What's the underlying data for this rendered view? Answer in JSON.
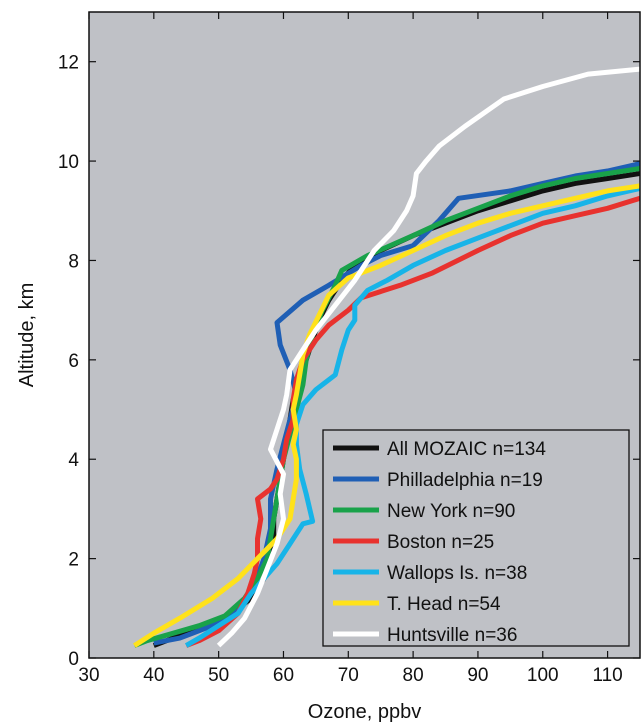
{
  "chart_data": {
    "type": "line",
    "title": "",
    "xlabel": "Ozone, ppbv",
    "ylabel": "Altitude, km",
    "xlim": [
      30,
      115
    ],
    "ylim": [
      0,
      13
    ],
    "xticks": [
      30,
      40,
      50,
      60,
      70,
      80,
      90,
      100,
      110
    ],
    "yticks": [
      0,
      2,
      4,
      6,
      8,
      10,
      12
    ],
    "grid": false,
    "background": "#bfc1c6",
    "legend_position": "bottom-right",
    "series": [
      {
        "name": "All MOZAIC n=134",
        "color": "#111111",
        "points": [
          [
            40,
            0.25
          ],
          [
            42,
            0.35
          ],
          [
            47,
            0.6
          ],
          [
            51,
            0.8
          ],
          [
            55,
            1.2
          ],
          [
            57,
            1.6
          ],
          [
            58,
            2.0
          ],
          [
            58.5,
            2.4
          ],
          [
            58.5,
            2.8
          ],
          [
            59,
            3.2
          ],
          [
            59.5,
            3.6
          ],
          [
            60,
            4.0
          ],
          [
            60.5,
            4.4
          ],
          [
            61,
            4.8
          ],
          [
            61.5,
            5.2
          ],
          [
            62.5,
            5.6
          ],
          [
            63.5,
            6.0
          ],
          [
            64.5,
            6.4
          ],
          [
            65.5,
            6.8
          ],
          [
            67,
            7.2
          ],
          [
            69,
            7.6
          ],
          [
            71,
            7.9
          ],
          [
            75,
            8.2
          ],
          [
            80,
            8.5
          ],
          [
            85,
            8.75
          ],
          [
            90,
            9.0
          ],
          [
            95,
            9.2
          ],
          [
            100,
            9.4
          ],
          [
            105,
            9.55
          ],
          [
            110,
            9.65
          ],
          [
            115,
            9.75
          ]
        ]
      },
      {
        "name": "Philladelphia n=19",
        "color": "#1f5fb5",
        "points": [
          [
            40,
            0.3
          ],
          [
            44,
            0.4
          ],
          [
            48,
            0.6
          ],
          [
            52,
            0.9
          ],
          [
            55,
            1.3
          ],
          [
            57,
            2.0
          ],
          [
            58,
            2.6
          ],
          [
            58,
            3.2
          ],
          [
            59,
            3.8
          ],
          [
            60,
            4.3
          ],
          [
            61,
            4.8
          ],
          [
            62,
            5.3
          ],
          [
            61,
            5.8
          ],
          [
            59.5,
            6.3
          ],
          [
            59,
            6.75
          ],
          [
            63,
            7.2
          ],
          [
            67,
            7.5
          ],
          [
            72,
            7.9
          ],
          [
            75,
            8.1
          ],
          [
            80,
            8.3
          ],
          [
            84,
            8.8
          ],
          [
            87,
            9.25
          ],
          [
            95,
            9.4
          ],
          [
            100,
            9.55
          ],
          [
            105,
            9.7
          ],
          [
            110,
            9.8
          ],
          [
            115,
            9.95
          ]
        ]
      },
      {
        "name": "New York n=90",
        "color": "#19a24a",
        "points": [
          [
            37,
            0.25
          ],
          [
            39,
            0.35
          ],
          [
            43,
            0.5
          ],
          [
            47,
            0.65
          ],
          [
            51,
            0.85
          ],
          [
            54,
            1.2
          ],
          [
            56,
            1.6
          ],
          [
            57.5,
            2.0
          ],
          [
            58,
            2.4
          ],
          [
            58.5,
            2.8
          ],
          [
            59,
            3.2
          ],
          [
            59.5,
            3.6
          ],
          [
            60,
            4.0
          ],
          [
            61,
            4.5
          ],
          [
            62,
            5.0
          ],
          [
            63,
            5.5
          ],
          [
            63.5,
            6.0
          ],
          [
            64.5,
            6.5
          ],
          [
            66,
            7.0
          ],
          [
            68,
            7.5
          ],
          [
            69,
            7.8
          ],
          [
            73,
            8.1
          ],
          [
            80,
            8.5
          ],
          [
            85,
            8.8
          ],
          [
            90,
            9.05
          ],
          [
            95,
            9.3
          ],
          [
            100,
            9.5
          ],
          [
            105,
            9.65
          ],
          [
            110,
            9.75
          ],
          [
            115,
            9.85
          ]
        ]
      },
      {
        "name": "Boston n=25",
        "color": "#e8322e",
        "points": [
          [
            45,
            0.25
          ],
          [
            47,
            0.35
          ],
          [
            50,
            0.55
          ],
          [
            53,
            0.9
          ],
          [
            54.5,
            1.3
          ],
          [
            55.5,
            1.7
          ],
          [
            56,
            2.0
          ],
          [
            56,
            2.4
          ],
          [
            56.5,
            2.8
          ],
          [
            56,
            3.2
          ],
          [
            58,
            3.4
          ],
          [
            59,
            3.6
          ],
          [
            60,
            4.0
          ],
          [
            60.5,
            4.4
          ],
          [
            61.5,
            4.8
          ],
          [
            61.5,
            5.2
          ],
          [
            62,
            5.6
          ],
          [
            63,
            6.0
          ],
          [
            65,
            6.4
          ],
          [
            67,
            6.7
          ],
          [
            70,
            7.0
          ],
          [
            72,
            7.25
          ],
          [
            78,
            7.5
          ],
          [
            83,
            7.75
          ],
          [
            90,
            8.2
          ],
          [
            95,
            8.5
          ],
          [
            100,
            8.75
          ],
          [
            105,
            8.9
          ],
          [
            110,
            9.05
          ],
          [
            115,
            9.25
          ]
        ]
      },
      {
        "name": "Wallops Is. n=38",
        "color": "#17b4e8",
        "points": [
          [
            45,
            0.25
          ],
          [
            47,
            0.4
          ],
          [
            50,
            0.65
          ],
          [
            53,
            0.9
          ],
          [
            55,
            1.3
          ],
          [
            57,
            1.6
          ],
          [
            59,
            1.9
          ],
          [
            61,
            2.3
          ],
          [
            63,
            2.7
          ],
          [
            64.5,
            2.75
          ],
          [
            63.5,
            3.3
          ],
          [
            62.5,
            3.8
          ],
          [
            62,
            4.3
          ],
          [
            62,
            4.7
          ],
          [
            63,
            5.1
          ],
          [
            65,
            5.4
          ],
          [
            68,
            5.7
          ],
          [
            69,
            6.2
          ],
          [
            70,
            6.6
          ],
          [
            71,
            6.8
          ],
          [
            71,
            7.1
          ],
          [
            73,
            7.4
          ],
          [
            76,
            7.6
          ],
          [
            80,
            7.9
          ],
          [
            85,
            8.2
          ],
          [
            90,
            8.45
          ],
          [
            95,
            8.7
          ],
          [
            100,
            8.95
          ],
          [
            105,
            9.1
          ],
          [
            110,
            9.3
          ],
          [
            115,
            9.45
          ]
        ]
      },
      {
        "name": "T. Head n=54",
        "color": "#ffe21a",
        "points": [
          [
            37,
            0.25
          ],
          [
            40,
            0.5
          ],
          [
            44,
            0.8
          ],
          [
            49,
            1.2
          ],
          [
            53,
            1.6
          ],
          [
            56,
            2.0
          ],
          [
            59,
            2.4
          ],
          [
            61,
            2.8
          ],
          [
            61.5,
            3.2
          ],
          [
            62,
            3.6
          ],
          [
            62,
            4.0
          ],
          [
            61.5,
            4.3
          ],
          [
            62,
            4.6
          ],
          [
            61.5,
            5.0
          ],
          [
            62,
            5.3
          ],
          [
            62.5,
            5.7
          ],
          [
            63,
            6.1
          ],
          [
            64,
            6.5
          ],
          [
            65.5,
            6.9
          ],
          [
            67,
            7.3
          ],
          [
            70,
            7.65
          ],
          [
            75,
            7.9
          ],
          [
            80,
            8.2
          ],
          [
            85,
            8.5
          ],
          [
            90,
            8.75
          ],
          [
            95,
            8.95
          ],
          [
            100,
            9.1
          ],
          [
            105,
            9.25
          ],
          [
            110,
            9.4
          ],
          [
            115,
            9.5
          ]
        ]
      },
      {
        "name": "Huntsville n=36",
        "color": "#ffffff",
        "points": [
          [
            50,
            0.25
          ],
          [
            52,
            0.5
          ],
          [
            54,
            0.8
          ],
          [
            56,
            1.3
          ],
          [
            57.5,
            1.8
          ],
          [
            59,
            2.3
          ],
          [
            60,
            2.8
          ],
          [
            59.5,
            3.3
          ],
          [
            60,
            3.7
          ],
          [
            58,
            4.2
          ],
          [
            59,
            4.6
          ],
          [
            60,
            5.0
          ],
          [
            60.5,
            5.3
          ],
          [
            61,
            5.8
          ],
          [
            63,
            6.2
          ],
          [
            65,
            6.6
          ],
          [
            68,
            7.1
          ],
          [
            71,
            7.6
          ],
          [
            74,
            8.2
          ],
          [
            77,
            8.6
          ],
          [
            79,
            9.0
          ],
          [
            80,
            9.3
          ],
          [
            80.5,
            9.75
          ],
          [
            82,
            10.0
          ],
          [
            84,
            10.3
          ],
          [
            88,
            10.7
          ],
          [
            94,
            11.25
          ],
          [
            100,
            11.5
          ],
          [
            107,
            11.75
          ],
          [
            115,
            11.85
          ]
        ]
      }
    ]
  }
}
